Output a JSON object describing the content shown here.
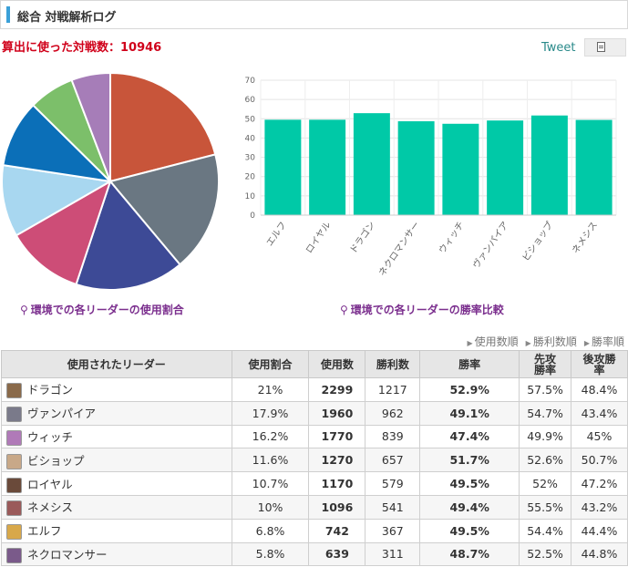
{
  "header": {
    "title": "総合 対戦解析ログ"
  },
  "battle_count_text": "算出に使った対戦数：10946",
  "share": {
    "tweet_label": "Tweet"
  },
  "captions": {
    "pie": "環境での各リーダーの使用割合",
    "bar": "環境での各リーダーの勝率比較"
  },
  "sort_links": [
    "使用数順",
    "勝利数順",
    "勝率順"
  ],
  "colors": {
    "pie": [
      "#c8553a",
      "#6a7782",
      "#3d4a96",
      "#cd4d77",
      "#a8d7f0",
      "#0b6fb8",
      "#7cbf6a",
      "#a67db8"
    ],
    "bar": "#00c9a7",
    "highlight": "#e07020"
  },
  "table": {
    "headers": [
      "使用されたリーダー",
      "使用割合",
      "使用数",
      "勝利数",
      "勝率",
      "先攻勝率",
      "後攻勝率"
    ],
    "rows": [
      {
        "leader": "ドラゴン",
        "share": "21%",
        "uses": "2299",
        "wins": "1217",
        "winrate": "52.9%",
        "first": "57.5%",
        "second": "48.4%",
        "hl": true,
        "avatar": "#8a6a4a"
      },
      {
        "leader": "ヴァンパイア",
        "share": "17.9%",
        "uses": "1960",
        "wins": "962",
        "winrate": "49.1%",
        "first": "54.7%",
        "second": "43.4%",
        "hl": false,
        "avatar": "#7a7a8a"
      },
      {
        "leader": "ウィッチ",
        "share": "16.2%",
        "uses": "1770",
        "wins": "839",
        "winrate": "47.4%",
        "first": "49.9%",
        "second": "45%",
        "hl": false,
        "avatar": "#b07ab8"
      },
      {
        "leader": "ビショップ",
        "share": "11.6%",
        "uses": "1270",
        "wins": "657",
        "winrate": "51.7%",
        "first": "52.6%",
        "second": "50.7%",
        "hl": true,
        "avatar": "#c8a888"
      },
      {
        "leader": "ロイヤル",
        "share": "10.7%",
        "uses": "1170",
        "wins": "579",
        "winrate": "49.5%",
        "first": "52%",
        "second": "47.2%",
        "hl": false,
        "avatar": "#6a4a3a"
      },
      {
        "leader": "ネメシス",
        "share": "10%",
        "uses": "1096",
        "wins": "541",
        "winrate": "49.4%",
        "first": "55.5%",
        "second": "43.2%",
        "hl": false,
        "avatar": "#9a5a5a"
      },
      {
        "leader": "エルフ",
        "share": "6.8%",
        "uses": "742",
        "wins": "367",
        "winrate": "49.5%",
        "first": "54.4%",
        "second": "44.4%",
        "hl": false,
        "avatar": "#d8a84a"
      },
      {
        "leader": "ネクロマンサー",
        "share": "5.8%",
        "uses": "639",
        "wins": "311",
        "winrate": "48.7%",
        "first": "52.5%",
        "second": "44.8%",
        "hl": false,
        "avatar": "#7a5a8a"
      }
    ]
  },
  "chart_data": [
    {
      "type": "pie",
      "categories": [
        "ドラゴン",
        "ヴァンパイア",
        "ウィッチ",
        "ビショップ",
        "ロイヤル",
        "ネメシス",
        "エルフ",
        "ネクロマンサー"
      ],
      "values": [
        21,
        17.9,
        16.2,
        11.6,
        10.7,
        10,
        6.8,
        5.8
      ]
    },
    {
      "type": "bar",
      "categories": [
        "エルフ",
        "ロイヤル",
        "ドラゴン",
        "ネクロマンサー",
        "ウィッチ",
        "ヴァンパイア",
        "ビショップ",
        "ネメシス"
      ],
      "values": [
        49.5,
        49.5,
        52.9,
        48.7,
        47.4,
        49.1,
        51.7,
        49.4
      ],
      "ylim": [
        0,
        70
      ],
      "yticks": [
        "0",
        "10",
        "20",
        "30",
        "40",
        "50",
        "60",
        "70"
      ],
      "grid": true
    }
  ]
}
